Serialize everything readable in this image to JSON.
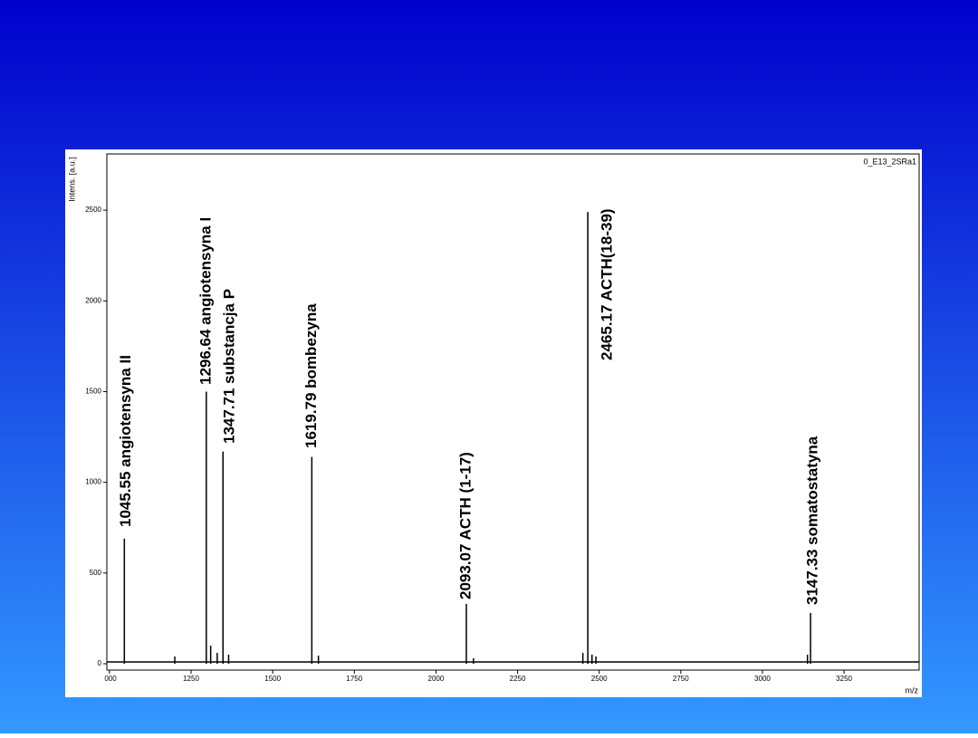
{
  "chart_data": {
    "type": "spectrum",
    "label_top_right": "0_E13_2SRa1",
    "y_label": "Intens. [a.u.]",
    "x_label": "m/z",
    "x": [
      1045.55,
      1296.64,
      1347.71,
      1619.79,
      2093.07,
      2465.17,
      3147.33,
      1200,
      1310,
      1330,
      1365,
      1640,
      2115,
      2450,
      2478,
      2490,
      3138
    ],
    "values": [
      690,
      1500,
      1170,
      1140,
      330,
      2490,
      280,
      40,
      100,
      60,
      50,
      45,
      30,
      60,
      50,
      40,
      50
    ],
    "color": "#000000",
    "annotations": [
      "1045.55  angiotensyna II",
      "1296.64 angiotensyna I",
      "1347.71 substancja P",
      "1619.79 bombezyna",
      "2093.07 ACTH (1-17)",
      "2465.17 ACTH(18-39)",
      "3147.33 somatostatyna"
    ],
    "xlim": [
      992,
      3480
    ],
    "ylim": [
      -35,
      2810
    ],
    "xticks": [
      {
        "value": 1000,
        "label": "000"
      },
      1250,
      1500,
      1750,
      2000,
      2250,
      2500,
      2750,
      3000,
      3250
    ],
    "yticks": [
      0,
      500,
      1000,
      1500,
      2000,
      2500
    ]
  }
}
